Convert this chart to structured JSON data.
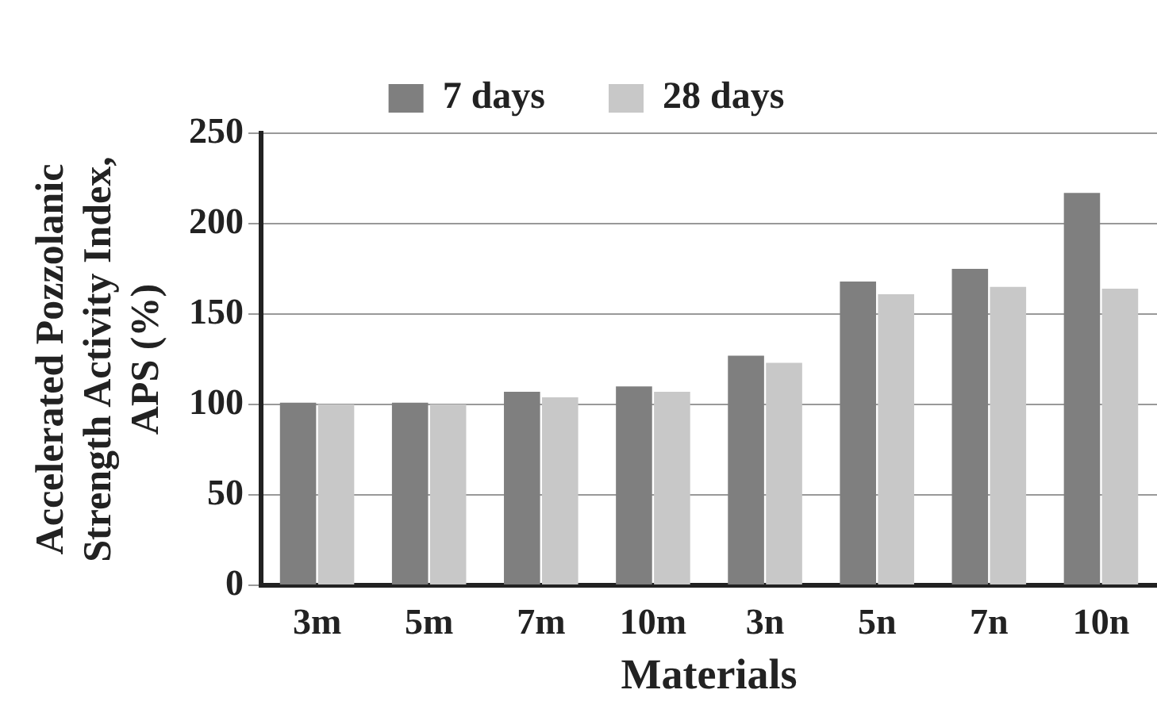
{
  "chart_data": {
    "type": "bar",
    "xlabel": "Materials",
    "ylabel": "Accelerated Pozzolanic\nStrength Activity Index,\nAPS (%)",
    "categories": [
      "3m",
      "5m",
      "7m",
      "10m",
      "3n",
      "5n",
      "7n",
      "10n"
    ],
    "series": [
      {
        "name": "7 days",
        "color": "#7f7f7f",
        "values": [
          101,
          101,
          107,
          110,
          127,
          168,
          175,
          217
        ]
      },
      {
        "name": "28 days",
        "color": "#c8c8c8",
        "values": [
          100,
          100,
          104,
          107,
          123,
          161,
          165,
          164
        ]
      }
    ],
    "ylim": [
      0,
      250
    ],
    "yticks": [
      0,
      50,
      100,
      150,
      200,
      250
    ],
    "grid": "y",
    "legend": "top"
  }
}
